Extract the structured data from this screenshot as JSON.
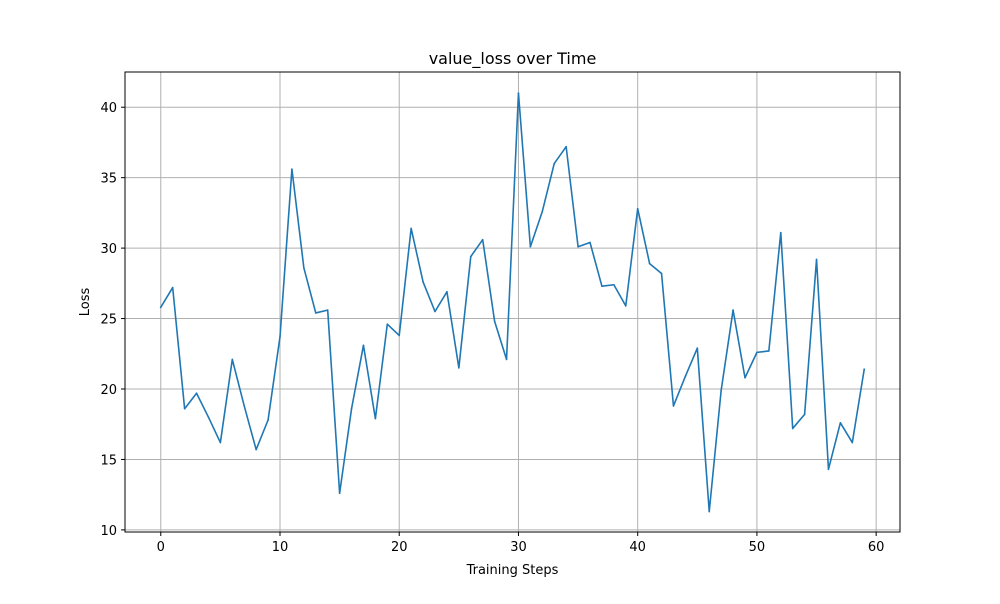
{
  "chart_data": {
    "type": "line",
    "title": "value_loss over Time",
    "xlabel": "Training Steps",
    "ylabel": "Loss",
    "xlim": [
      -3,
      62
    ],
    "ylim": [
      9.85,
      42.5
    ],
    "x_ticks": [
      0,
      10,
      20,
      30,
      40,
      50,
      60
    ],
    "y_ticks": [
      10,
      15,
      20,
      25,
      30,
      35,
      40
    ],
    "grid": true,
    "line_color": "#1f77b4",
    "series": [
      {
        "x": [
          0,
          1,
          2,
          3,
          4,
          5,
          6,
          7,
          8,
          9,
          10,
          11,
          12,
          13,
          14,
          15,
          16,
          17,
          18,
          19,
          20,
          21,
          22,
          23,
          24,
          25,
          26,
          27,
          28,
          29,
          30,
          31,
          32,
          33,
          34,
          35,
          36,
          37,
          38,
          39,
          40,
          41,
          42,
          43,
          44,
          45,
          46,
          47,
          48,
          49,
          50,
          51,
          52,
          53,
          54,
          55,
          56,
          57,
          58,
          59
        ],
        "values": [
          25.8,
          27.2,
          18.6,
          19.7,
          18.0,
          16.2,
          22.1,
          18.8,
          15.7,
          17.8,
          23.7,
          35.6,
          28.6,
          25.4,
          25.6,
          12.6,
          18.6,
          23.1,
          17.9,
          24.6,
          23.8,
          31.4,
          27.6,
          25.5,
          26.9,
          21.5,
          29.4,
          30.6,
          24.8,
          22.1,
          41.0,
          30.1,
          32.6,
          36.0,
          37.2,
          30.1,
          30.4,
          27.3,
          27.4,
          25.9,
          32.8,
          28.9,
          28.2,
          18.8,
          20.9,
          22.9,
          11.3,
          19.9,
          25.6,
          20.8,
          22.6,
          22.7,
          31.1,
          17.2,
          18.2,
          29.2,
          14.3,
          17.6,
          16.2,
          21.4
        ]
      }
    ]
  }
}
